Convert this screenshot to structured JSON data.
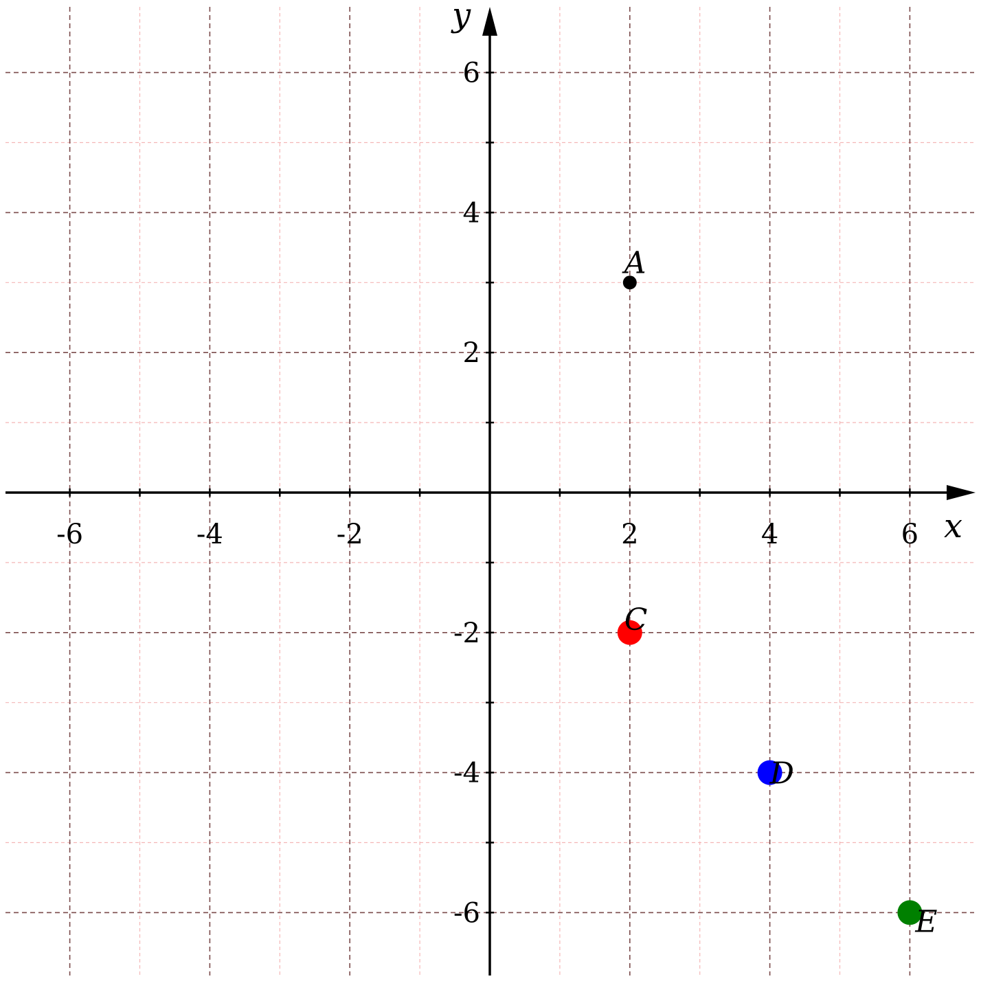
{
  "chart_data": {
    "type": "scatter",
    "xlabel": "x",
    "ylabel": "y",
    "xlim": [
      -6.9,
      6.9
    ],
    "ylim": [
      -6.9,
      6.9
    ],
    "grid": true,
    "major_ticks": [
      -6,
      -4,
      -2,
      2,
      4,
      6
    ],
    "minor_ticks": [
      -5,
      -3,
      -1,
      1,
      3,
      5
    ],
    "x_tick_labels": [
      "-6",
      "-4",
      "-2",
      "2",
      "4",
      "6"
    ],
    "y_tick_labels": [
      "-6",
      "-4",
      "-2",
      "2",
      "4",
      "6"
    ],
    "points": [
      {
        "label": "A",
        "x": 2,
        "y": 3,
        "color": "#000000",
        "size": "small"
      },
      {
        "label": "C",
        "x": 2,
        "y": -2,
        "color": "#ff0000",
        "size": "large"
      },
      {
        "label": "D",
        "x": 4,
        "y": -4,
        "color": "#0000ff",
        "size": "large"
      },
      {
        "label": "E",
        "x": 6,
        "y": -6,
        "color": "#008000",
        "size": "large"
      }
    ]
  }
}
